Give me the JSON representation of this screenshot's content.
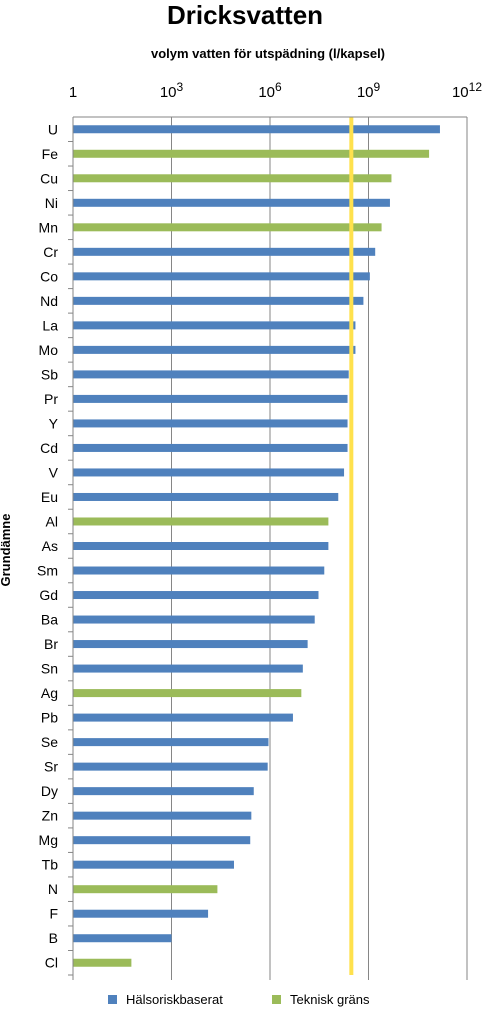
{
  "chart_data": {
    "type": "bar",
    "orientation": "horizontal",
    "title": "Dricksvatten",
    "xlabel": "volym vatten för utspädning  (l/kapsel)",
    "ylabel": "Grundämne",
    "x_scale": "log",
    "xlim": [
      1,
      1000000000000
    ],
    "x_ticks": [
      {
        "value": 1,
        "base": "1",
        "exp": ""
      },
      {
        "value": 1000,
        "base": "10",
        "exp": "3"
      },
      {
        "value": 1000000,
        "base": "10",
        "exp": "6"
      },
      {
        "value": 1000000000,
        "base": "10",
        "exp": "9"
      },
      {
        "value": 1000000000000,
        "base": "10",
        "exp": "12"
      }
    ],
    "grid": "vertical",
    "legend_position": "bottom",
    "reference_line": {
      "value": 300000000,
      "color": "#FFE14D"
    },
    "series": [
      {
        "key": "health",
        "name": "Hälsoriskbaserat",
        "color": "#4F81BD"
      },
      {
        "key": "tech",
        "name": "Teknisk gräns",
        "color": "#9BBB59"
      }
    ],
    "categories": [
      "U",
      "Fe",
      "Cu",
      "Ni",
      "Mn",
      "Cr",
      "Co",
      "Nd",
      "La",
      "Mo",
      "Sb",
      "Pr",
      "Y",
      "Cd",
      "V",
      "Eu",
      "Al",
      "As",
      "Sm",
      "Gd",
      "Ba",
      "Br",
      "Sn",
      "Ag",
      "Pb",
      "Se",
      "Sr",
      "Dy",
      "Zn",
      "Mg",
      "Tb",
      "N",
      "F",
      "B",
      "Cl"
    ],
    "values": [
      150000000000,
      70000000000,
      5000000000,
      4500000000,
      2500000000,
      1600000000,
      1100000000,
      700000000,
      400000000,
      400000000,
      250000000,
      230000000,
      230000000,
      230000000,
      180000000,
      120000000,
      60000000,
      60000000,
      45000000,
      30000000,
      23000000,
      14000000,
      10000000,
      9000000,
      5000000,
      900000,
      850000,
      320000,
      270000,
      250000,
      80000,
      25000,
      13000,
      1000,
      60
    ],
    "groups": [
      "health",
      "tech",
      "tech",
      "health",
      "tech",
      "health",
      "health",
      "health",
      "health",
      "health",
      "health",
      "health",
      "health",
      "health",
      "health",
      "health",
      "tech",
      "health",
      "health",
      "health",
      "health",
      "health",
      "health",
      "tech",
      "health",
      "health",
      "health",
      "health",
      "health",
      "health",
      "health",
      "tech",
      "health",
      "health",
      "tech"
    ]
  }
}
